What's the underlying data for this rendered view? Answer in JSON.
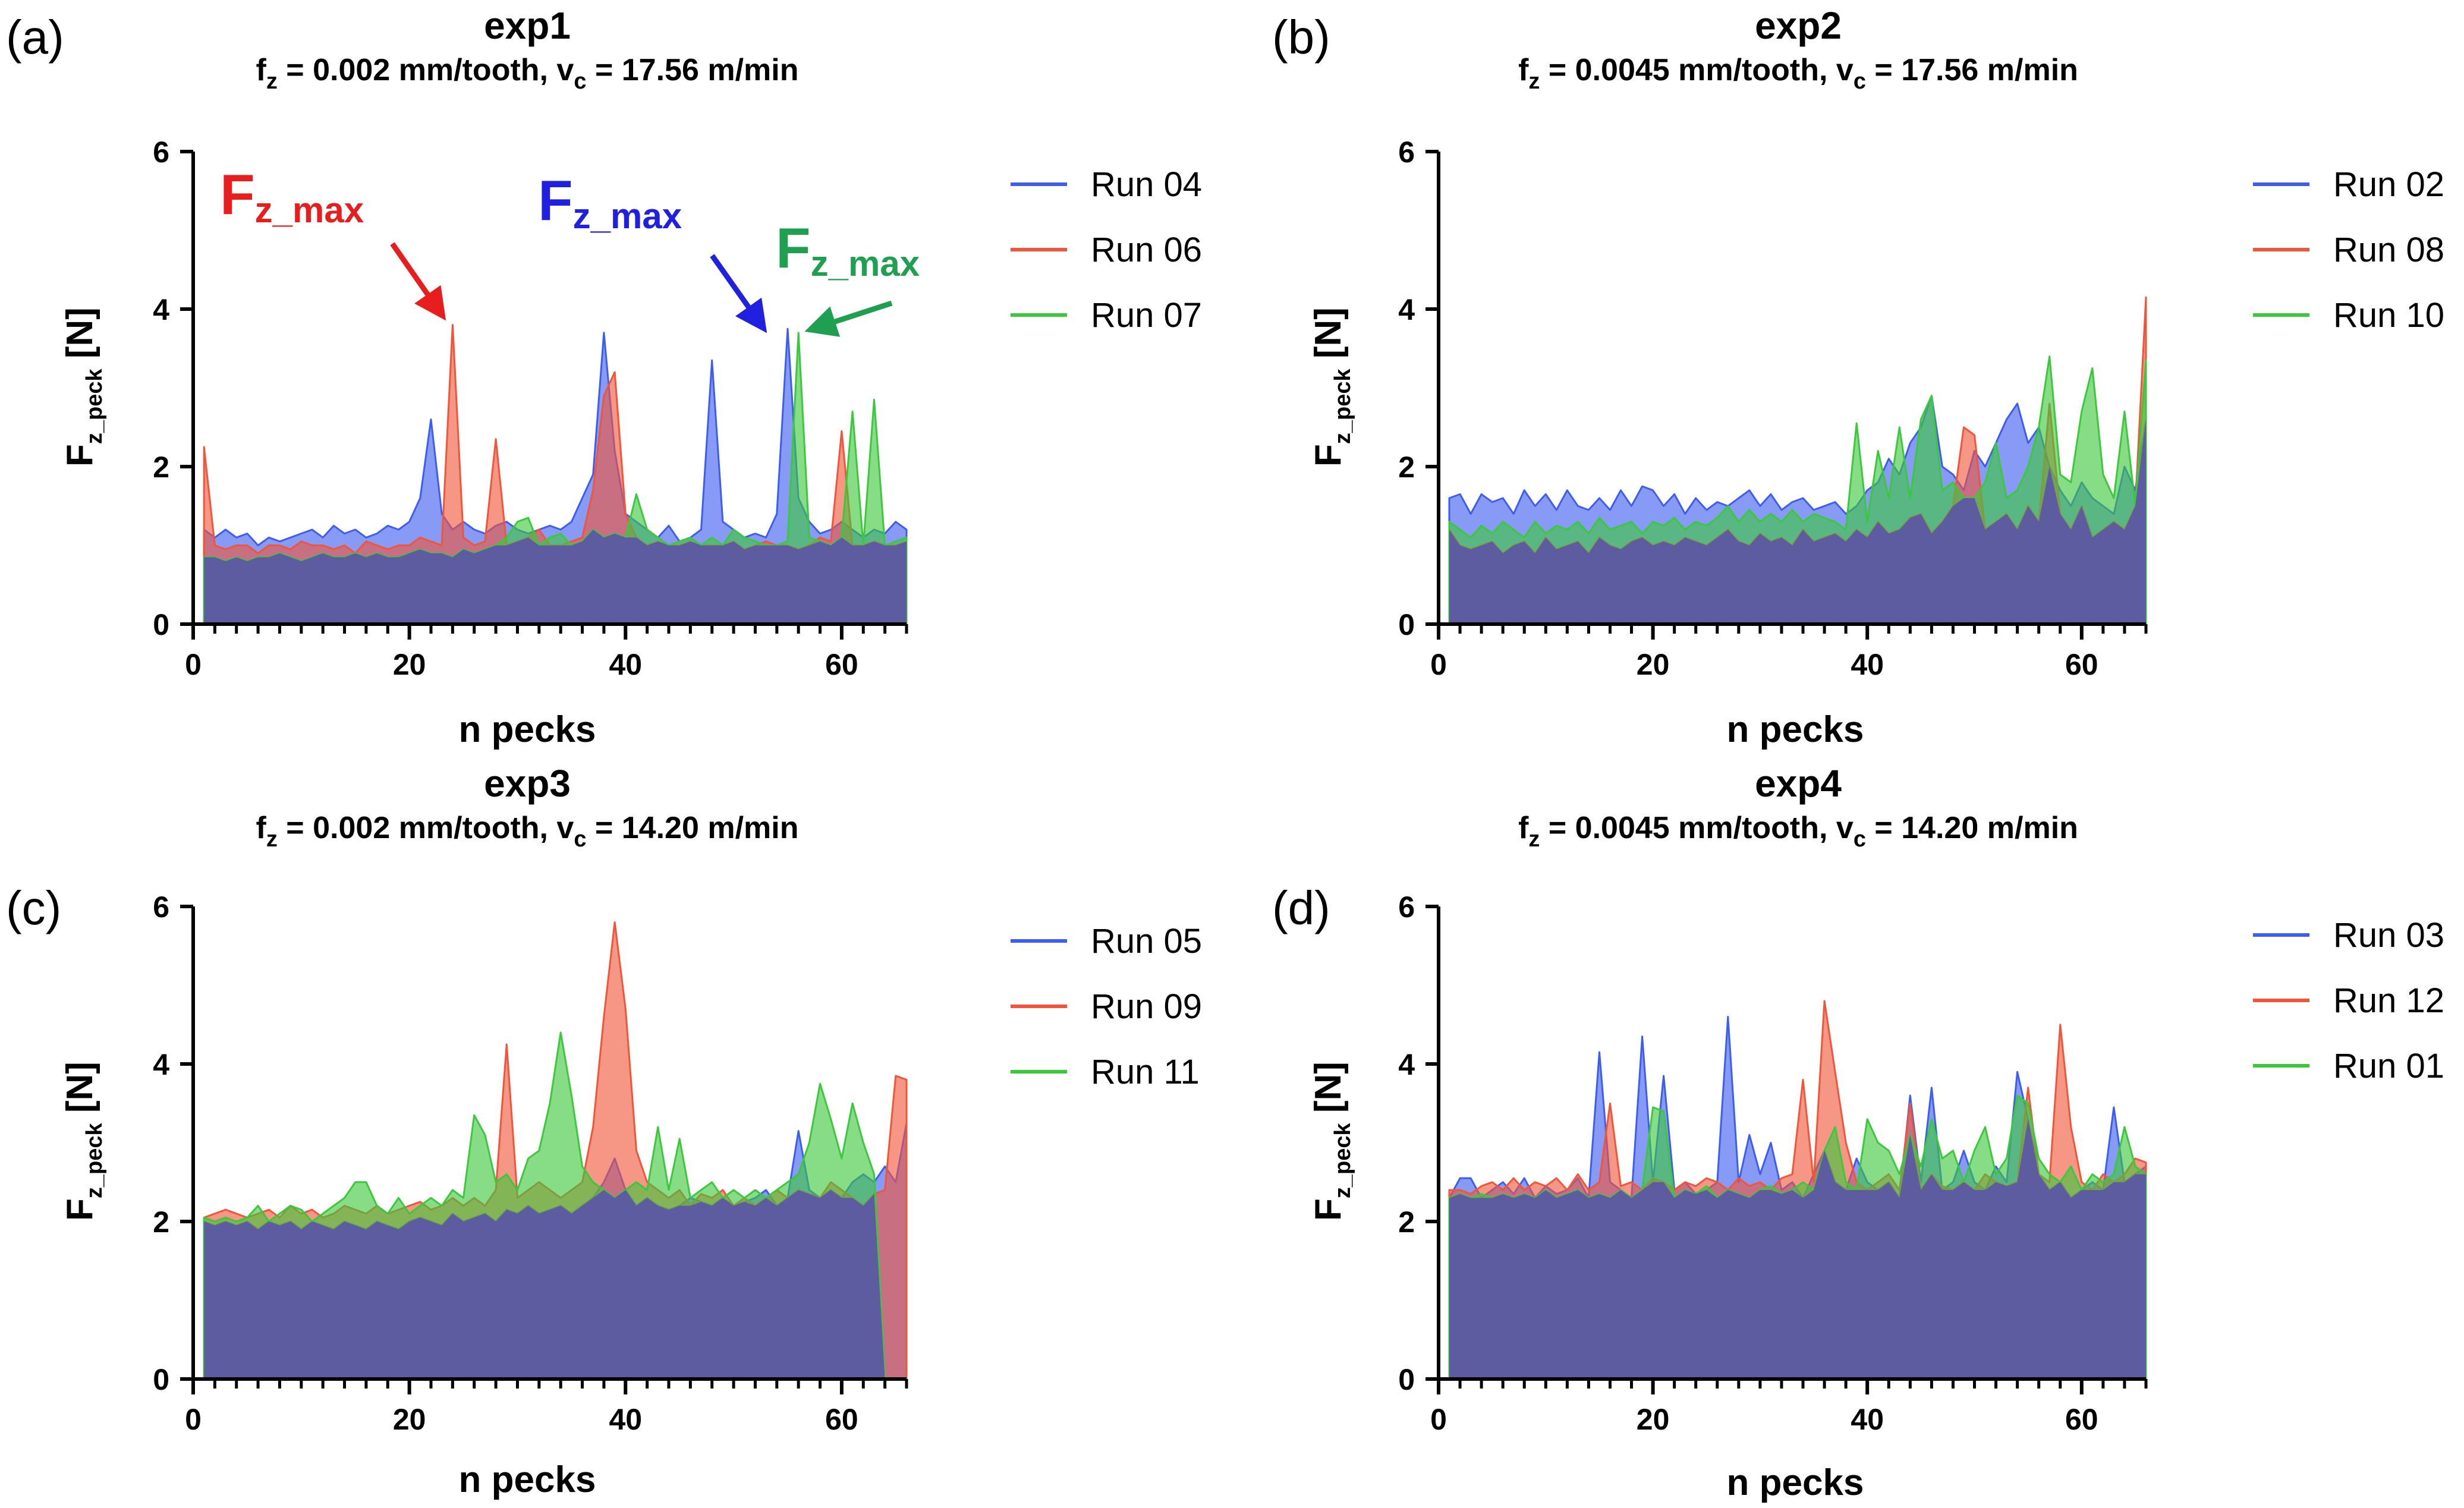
{
  "figure": {
    "axis": {
      "xlabel": "n pecks",
      "ylabel_main": "F",
      "ylabel_sub": "z_peck",
      "ylabel_unit": "[N]"
    },
    "series_colors": [
      "#3d5df0",
      "#f0553a",
      "#3cc83c"
    ],
    "overlap_color": "#5e5ca0",
    "annotations": {
      "label_main": "F",
      "label_sub": "z_max",
      "colors": [
        "#e81e1e",
        "#2020e0",
        "#1ea050"
      ]
    }
  },
  "chart_data": [
    {
      "type": "area",
      "panel_label": "(a)",
      "title": "exp1",
      "subtitle": {
        "f_main": "f",
        "f_sub": "z",
        "f_rest": " = 0.002 mm/tooth, v",
        "v_sub": "c",
        "v_rest": " = 17.56 m/min"
      },
      "xlabel": "n pecks",
      "ylabel": "Fz_peck [N]",
      "xlim": [
        0,
        66
      ],
      "ylim": [
        0,
        6
      ],
      "xticks": [
        "0",
        "20",
        "40",
        "60"
      ],
      "yticks": [
        "0",
        "2",
        "4",
        "6"
      ],
      "series": [
        {
          "name": "Run 04",
          "values": [
            1.2,
            1.1,
            1.2,
            1.1,
            1.15,
            1.0,
            1.1,
            1.05,
            1.1,
            1.15,
            1.2,
            1.1,
            1.25,
            1.15,
            1.2,
            1.1,
            1.15,
            1.25,
            1.2,
            1.3,
            1.6,
            2.6,
            1.4,
            1.2,
            1.3,
            1.2,
            1.15,
            1.25,
            1.3,
            1.2,
            1.15,
            1.2,
            1.25,
            1.2,
            1.3,
            1.6,
            1.9,
            3.7,
            2.2,
            1.4,
            1.3,
            1.2,
            1.1,
            1.25,
            1.05,
            1.1,
            1.2,
            3.35,
            1.3,
            1.2,
            1.1,
            1.15,
            1.1,
            1.4,
            3.75,
            1.6,
            1.3,
            1.15,
            1.2,
            1.3,
            1.2,
            1.1,
            1.2,
            1.15,
            1.3,
            1.2
          ]
        },
        {
          "name": "Run 06",
          "values": [
            2.25,
            1.0,
            0.95,
            1.0,
            1.0,
            0.9,
            1.0,
            1.0,
            0.95,
            1.05,
            1.0,
            1.0,
            0.95,
            1.0,
            0.9,
            1.05,
            1.0,
            0.95,
            1.0,
            1.0,
            1.1,
            1.05,
            1.0,
            3.8,
            1.1,
            1.0,
            1.05,
            2.35,
            1.0,
            1.05,
            1.1,
            1.2,
            1.0,
            1.0,
            1.05,
            1.1,
            1.7,
            2.9,
            3.2,
            1.4,
            1.1,
            1.0,
            1.05,
            1.0,
            1.0,
            1.05,
            1.0,
            1.0,
            1.0,
            1.05,
            0.95,
            1.0,
            1.05,
            1.0,
            1.0,
            0.95,
            1.0,
            1.1,
            1.05,
            2.45,
            1.0,
            1.0,
            1.05,
            1.0,
            1.0,
            1.05
          ]
        },
        {
          "name": "Run 07",
          "values": [
            0.85,
            0.85,
            0.8,
            0.85,
            0.8,
            0.85,
            0.85,
            0.9,
            0.85,
            0.8,
            0.85,
            0.9,
            0.85,
            0.85,
            0.9,
            0.85,
            0.9,
            0.85,
            0.85,
            0.9,
            0.95,
            0.9,
            0.9,
            0.85,
            0.95,
            0.9,
            0.95,
            1.0,
            1.1,
            1.3,
            1.35,
            1.0,
            1.1,
            1.15,
            1.0,
            1.05,
            1.2,
            1.1,
            1.15,
            1.1,
            1.65,
            1.2,
            1.1,
            1.0,
            1.05,
            1.1,
            1.0,
            1.1,
            1.0,
            1.2,
            1.1,
            1.05,
            1.0,
            1.0,
            1.05,
            3.7,
            1.1,
            1.05,
            1.0,
            1.1,
            2.7,
            1.0,
            2.85,
            1.0,
            1.05,
            1.1
          ]
        }
      ],
      "legend": [
        "Run 04",
        "Run 06",
        "Run 07"
      ]
    },
    {
      "type": "area",
      "panel_label": "(b)",
      "title": "exp2",
      "subtitle": {
        "f_main": "f",
        "f_sub": "z",
        "f_rest": " = 0.0045 mm/tooth, v",
        "v_sub": "c",
        "v_rest": " = 17.56 m/min"
      },
      "xlabel": "n pecks",
      "ylabel": "Fz_peck [N]",
      "xlim": [
        0,
        66
      ],
      "ylim": [
        0,
        6
      ],
      "xticks": [
        "0",
        "20",
        "40",
        "60"
      ],
      "yticks": [
        "0",
        "2",
        "4",
        "6"
      ],
      "series": [
        {
          "name": "Run 02",
          "values": [
            1.6,
            1.65,
            1.4,
            1.65,
            1.55,
            1.6,
            1.4,
            1.7,
            1.5,
            1.65,
            1.45,
            1.7,
            1.5,
            1.45,
            1.6,
            1.45,
            1.7,
            1.5,
            1.75,
            1.7,
            1.5,
            1.65,
            1.4,
            1.6,
            1.45,
            1.55,
            1.5,
            1.6,
            1.7,
            1.5,
            1.65,
            1.45,
            1.55,
            1.6,
            1.45,
            1.5,
            1.55,
            1.4,
            1.5,
            1.7,
            1.8,
            2.1,
            1.9,
            2.3,
            2.5,
            2.9,
            2.0,
            1.9,
            1.7,
            2.2,
            2.0,
            2.3,
            2.6,
            2.8,
            2.3,
            2.5,
            2.0,
            1.7,
            1.5,
            1.8,
            1.6,
            1.5,
            1.4,
            2.0,
            1.7,
            2.6
          ]
        },
        {
          "name": "Run 08",
          "values": [
            1.2,
            1.0,
            0.95,
            1.0,
            1.05,
            0.9,
            1.0,
            1.05,
            0.9,
            1.1,
            0.95,
            1.0,
            1.05,
            0.9,
            1.1,
            1.0,
            0.95,
            1.05,
            1.1,
            1.0,
            1.05,
            1.0,
            1.1,
            1.05,
            1.0,
            1.1,
            1.2,
            1.05,
            1.0,
            1.15,
            1.05,
            1.1,
            1.0,
            1.2,
            1.05,
            1.1,
            1.15,
            1.05,
            1.2,
            1.1,
            1.3,
            1.15,
            1.2,
            1.35,
            1.4,
            1.15,
            1.3,
            1.5,
            2.5,
            2.4,
            1.2,
            1.3,
            1.4,
            1.2,
            1.5,
            1.3,
            2.8,
            1.4,
            1.2,
            1.5,
            1.1,
            1.2,
            1.3,
            1.2,
            1.5,
            4.15
          ]
        },
        {
          "name": "Run 10",
          "values": [
            1.3,
            1.2,
            1.1,
            1.25,
            1.15,
            1.3,
            1.2,
            1.1,
            1.3,
            1.15,
            1.25,
            1.2,
            1.3,
            1.15,
            1.35,
            1.2,
            1.25,
            1.3,
            1.15,
            1.3,
            1.25,
            1.35,
            1.2,
            1.3,
            1.25,
            1.35,
            1.5,
            1.3,
            1.45,
            1.3,
            1.4,
            1.3,
            1.45,
            1.3,
            1.4,
            1.35,
            1.3,
            1.2,
            2.55,
            1.3,
            2.2,
            1.6,
            2.5,
            1.6,
            2.6,
            2.9,
            1.7,
            1.8,
            1.6,
            1.6,
            1.8,
            2.3,
            1.6,
            1.7,
            2.0,
            2.5,
            3.4,
            1.9,
            1.8,
            2.7,
            3.25,
            1.9,
            1.6,
            2.7,
            1.5,
            3.35
          ]
        }
      ],
      "legend": [
        "Run 02",
        "Run 08",
        "Run 10"
      ]
    },
    {
      "type": "area",
      "panel_label": "(c)",
      "title": "exp3",
      "subtitle": {
        "f_main": "f",
        "f_sub": "z",
        "f_rest": " = 0.002 mm/tooth, v",
        "v_sub": "c",
        "v_rest": " = 14.20 m/min"
      },
      "xlabel": "n pecks",
      "ylabel": "Fz_peck [N]",
      "xlim": [
        0,
        66
      ],
      "ylim": [
        0,
        6
      ],
      "xticks": [
        "0",
        "20",
        "40",
        "60"
      ],
      "yticks": [
        "0",
        "2",
        "4",
        "6"
      ],
      "series": [
        {
          "name": "Run 05",
          "values": [
            2.0,
            1.95,
            2.0,
            1.95,
            2.0,
            1.9,
            2.0,
            1.95,
            2.0,
            1.9,
            2.0,
            1.95,
            1.9,
            2.0,
            1.95,
            1.9,
            2.0,
            1.95,
            1.9,
            2.0,
            2.05,
            2.0,
            1.95,
            2.1,
            2.0,
            2.05,
            2.1,
            2.0,
            2.15,
            2.1,
            2.2,
            2.1,
            2.15,
            2.2,
            2.1,
            2.2,
            2.3,
            2.5,
            2.8,
            2.4,
            2.2,
            2.3,
            2.2,
            2.15,
            2.2,
            2.3,
            2.25,
            2.2,
            2.3,
            2.2,
            2.25,
            2.3,
            2.4,
            2.2,
            2.3,
            3.15,
            2.4,
            2.3,
            2.4,
            2.3,
            2.5,
            2.6,
            2.5,
            2.7,
            2.5,
            3.25
          ]
        },
        {
          "name": "Run 09",
          "values": [
            2.05,
            2.1,
            2.15,
            2.1,
            2.05,
            2.1,
            2.15,
            2.05,
            2.2,
            2.1,
            2.15,
            2.05,
            2.1,
            2.2,
            2.15,
            2.1,
            2.2,
            2.1,
            2.15,
            2.2,
            2.25,
            2.15,
            2.2,
            2.3,
            2.2,
            2.3,
            2.2,
            2.4,
            4.25,
            2.3,
            2.4,
            2.5,
            2.4,
            2.3,
            2.4,
            2.5,
            3.2,
            4.6,
            5.8,
            4.7,
            2.9,
            2.5,
            2.4,
            2.3,
            2.4,
            2.2,
            2.35,
            2.3,
            2.4,
            2.2,
            2.3,
            2.2,
            2.3,
            2.4,
            2.3,
            2.4,
            2.35,
            2.3,
            2.5,
            2.4,
            2.3,
            2.2,
            2.35,
            2.4,
            3.85,
            3.8
          ]
        },
        {
          "name": "Run 11",
          "values": [
            2.05,
            2.0,
            2.05,
            2.0,
            2.05,
            2.2,
            2.0,
            2.1,
            2.2,
            2.15,
            2.0,
            2.1,
            2.2,
            2.3,
            2.5,
            2.5,
            2.2,
            2.1,
            2.3,
            2.1,
            2.2,
            2.3,
            2.2,
            2.4,
            2.3,
            3.35,
            3.1,
            2.5,
            2.6,
            2.4,
            2.8,
            2.9,
            3.5,
            4.4,
            3.6,
            2.7,
            2.5,
            2.4,
            2.3,
            2.4,
            2.5,
            2.4,
            3.2,
            2.4,
            3.05,
            2.3,
            2.4,
            2.5,
            2.3,
            2.4,
            2.3,
            2.4,
            2.3,
            2.4,
            2.5,
            2.6,
            3.0,
            3.75,
            3.3,
            2.8,
            3.5,
            3.0,
            2.6,
            0.0,
            0.0,
            0.0
          ]
        }
      ],
      "legend": [
        "Run 05",
        "Run 09",
        "Run 11"
      ]
    },
    {
      "type": "area",
      "panel_label": "(d)",
      "title": "exp4",
      "subtitle": {
        "f_main": "f",
        "f_sub": "z",
        "f_rest": " = 0.0045 mm/tooth, v",
        "v_sub": "c",
        "v_rest": " = 14.20 m/min"
      },
      "xlabel": "n pecks",
      "ylabel": "Fz_peck [N]",
      "xlim": [
        0,
        66
      ],
      "ylim": [
        0,
        6
      ],
      "xticks": [
        "0",
        "20",
        "40",
        "60"
      ],
      "yticks": [
        "0",
        "2",
        "4",
        "6"
      ],
      "series": [
        {
          "name": "Run 03",
          "values": [
            2.3,
            2.55,
            2.55,
            2.3,
            2.4,
            2.5,
            2.35,
            2.55,
            2.3,
            2.45,
            2.35,
            2.4,
            2.55,
            2.3,
            4.15,
            2.5,
            2.4,
            2.3,
            4.35,
            2.5,
            3.85,
            2.4,
            2.5,
            2.35,
            2.4,
            2.5,
            4.6,
            2.5,
            3.1,
            2.6,
            3.0,
            2.4,
            2.5,
            2.3,
            2.6,
            2.9,
            2.5,
            2.4,
            2.8,
            2.5,
            2.4,
            2.5,
            2.3,
            3.6,
            2.5,
            3.7,
            2.4,
            2.5,
            2.9,
            2.5,
            2.4,
            2.7,
            2.5,
            3.9,
            3.3,
            2.6,
            2.4,
            2.5,
            2.3,
            2.4,
            2.5,
            2.4,
            3.45,
            2.5,
            2.6,
            2.7
          ]
        },
        {
          "name": "Run 12",
          "values": [
            2.4,
            2.4,
            2.35,
            2.45,
            2.5,
            2.4,
            2.55,
            2.4,
            2.5,
            2.45,
            2.55,
            2.4,
            2.6,
            2.4,
            2.5,
            3.5,
            2.45,
            2.5,
            2.4,
            2.55,
            2.5,
            2.4,
            2.5,
            2.45,
            2.55,
            2.5,
            2.4,
            2.55,
            2.45,
            2.5,
            2.4,
            2.55,
            2.6,
            3.8,
            2.5,
            4.8,
            3.9,
            3.0,
            2.5,
            2.4,
            2.5,
            2.6,
            2.4,
            3.5,
            2.4,
            2.6,
            2.45,
            2.4,
            2.5,
            2.4,
            2.6,
            2.5,
            2.45,
            2.5,
            3.7,
            2.6,
            2.5,
            4.5,
            3.2,
            2.5,
            2.4,
            2.6,
            2.5,
            2.6,
            2.8,
            2.75
          ]
        },
        {
          "name": "Run 01",
          "values": [
            2.3,
            2.35,
            2.3,
            2.35,
            2.3,
            2.35,
            2.3,
            2.35,
            2.3,
            2.4,
            2.3,
            2.35,
            2.4,
            2.3,
            2.35,
            2.3,
            2.4,
            2.3,
            2.4,
            3.45,
            3.4,
            2.3,
            2.4,
            2.35,
            2.45,
            2.3,
            2.4,
            2.35,
            2.3,
            2.4,
            2.45,
            2.35,
            2.4,
            2.5,
            2.4,
            2.9,
            3.2,
            2.5,
            2.4,
            3.3,
            3.0,
            2.9,
            2.6,
            3.1,
            2.7,
            3.3,
            2.8,
            2.9,
            2.5,
            2.9,
            3.2,
            2.6,
            2.8,
            3.6,
            3.5,
            2.8,
            2.6,
            2.5,
            2.7,
            2.4,
            2.6,
            2.5,
            2.6,
            3.2,
            2.7,
            2.6
          ]
        }
      ],
      "legend": [
        "Run 03",
        "Run 12",
        "Run 01"
      ]
    }
  ]
}
